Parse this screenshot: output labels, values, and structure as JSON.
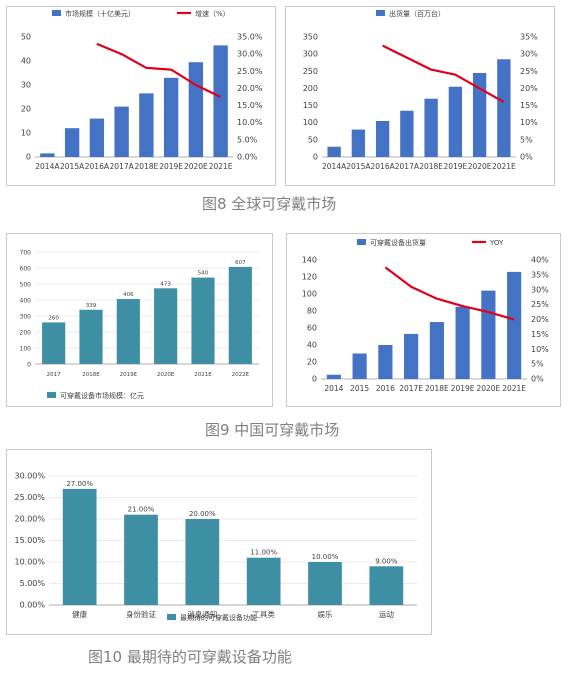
{
  "colors": {
    "bar": "#4472c4",
    "bar_teal": "#3e8fa3",
    "line": "#e0001b",
    "axis": "#7f7f7f",
    "grid": "#e4e4e4"
  },
  "captions": {
    "fig8": "图8 全球可穿戴市场",
    "fig9": "图9 中国可穿戴市场",
    "fig10": "图10 最期待的可穿戴设备功能"
  },
  "chart_data": [
    {
      "id": "c1",
      "type": "bar",
      "categories": [
        "2014A",
        "2015A",
        "2016A",
        "2017A",
        "2018E",
        "2019E",
        "2020E",
        "2021E"
      ],
      "series": [
        {
          "name": "市场规模（十亿美元）",
          "type": "bar",
          "axis": "left",
          "values": [
            1.5,
            12,
            16,
            21,
            26.5,
            33,
            39.5,
            46.5
          ]
        },
        {
          "name": "增速（%）",
          "type": "line",
          "axis": "right",
          "values": [
            null,
            null,
            33,
            30,
            26,
            25.5,
            21,
            17.5
          ]
        }
      ],
      "ylim": [
        0,
        50
      ],
      "yticks": [
        0,
        10,
        20,
        30,
        40,
        50
      ],
      "y2lim": [
        0,
        35
      ],
      "y2ticks": [
        "0.0%",
        "5.0%",
        "10.0%",
        "15.0%",
        "20.0%",
        "25.0%",
        "30.0%",
        "35.0%"
      ],
      "legend_position": "top"
    },
    {
      "id": "c2",
      "type": "bar",
      "categories": [
        "2014A",
        "2015A",
        "2016A",
        "2017A",
        "2018E",
        "2019E",
        "2020E",
        "2021E"
      ],
      "series": [
        {
          "name": "出货量（百万台）",
          "type": "bar",
          "axis": "left",
          "values": [
            30,
            80,
            105,
            135,
            170,
            205,
            245,
            285
          ]
        },
        {
          "name": "增速",
          "type": "line",
          "axis": "right",
          "values": [
            null,
            null,
            32.5,
            29,
            25.5,
            24,
            20,
            16
          ]
        }
      ],
      "ylim": [
        0,
        350
      ],
      "yticks": [
        0,
        50,
        100,
        150,
        200,
        250,
        300,
        350
      ],
      "y2lim": [
        0,
        35
      ],
      "y2ticks": [
        "0%",
        "5%",
        "10%",
        "15%",
        "20%",
        "25%",
        "30%",
        "35%"
      ],
      "legend_position": "top"
    },
    {
      "id": "c3",
      "type": "bar",
      "categories": [
        "2017",
        "2018E",
        "2019E",
        "2020E",
        "2021E",
        "2022E"
      ],
      "series": [
        {
          "name": "可穿戴设备市场规模：亿元",
          "type": "bar",
          "axis": "left",
          "values": [
            260,
            339,
            406,
            473,
            540,
            607
          ]
        }
      ],
      "ylim": [
        0,
        700
      ],
      "yticks": [
        0,
        100,
        200,
        300,
        400,
        500,
        600,
        700
      ],
      "legend_position": "bottom"
    },
    {
      "id": "c4",
      "type": "bar",
      "categories": [
        "2014",
        "2015",
        "2016",
        "2017E",
        "2018E",
        "2019E",
        "2020E",
        "2021E"
      ],
      "series": [
        {
          "name": "可穿戴设备出货量",
          "type": "bar",
          "axis": "left",
          "values": [
            5,
            30,
            40,
            53,
            67,
            85,
            104,
            126
          ]
        },
        {
          "name": "YOY",
          "type": "line",
          "axis": "right",
          "values": [
            null,
            null,
            37.5,
            31,
            27,
            24.5,
            22.5,
            20
          ]
        }
      ],
      "ylim": [
        0,
        140
      ],
      "yticks": [
        0,
        20,
        40,
        60,
        80,
        100,
        120,
        140
      ],
      "y2lim": [
        0,
        40
      ],
      "y2ticks": [
        "0%",
        "5%",
        "10%",
        "15%",
        "20%",
        "25%",
        "30%",
        "35%",
        "40%"
      ],
      "legend_position": "top"
    },
    {
      "id": "c5",
      "type": "bar",
      "categories": [
        "健康",
        "身份验证",
        "消息通知",
        "工具类",
        "娱乐",
        "运动"
      ],
      "series": [
        {
          "name": "最期待的可穿戴设备功能",
          "type": "bar",
          "axis": "left",
          "values": [
            27,
            21,
            20,
            11,
            10,
            9
          ]
        }
      ],
      "value_labels": [
        "27.00%",
        "21.00%",
        "20.00%",
        "11.00%",
        "10.00%",
        "9.00%"
      ],
      "ylim": [
        0,
        30
      ],
      "yticks": [
        "0.00%",
        "5.00%",
        "10.00%",
        "15.00%",
        "20.00%",
        "25.00%",
        "30.00%"
      ],
      "legend_position": "bottom"
    }
  ]
}
